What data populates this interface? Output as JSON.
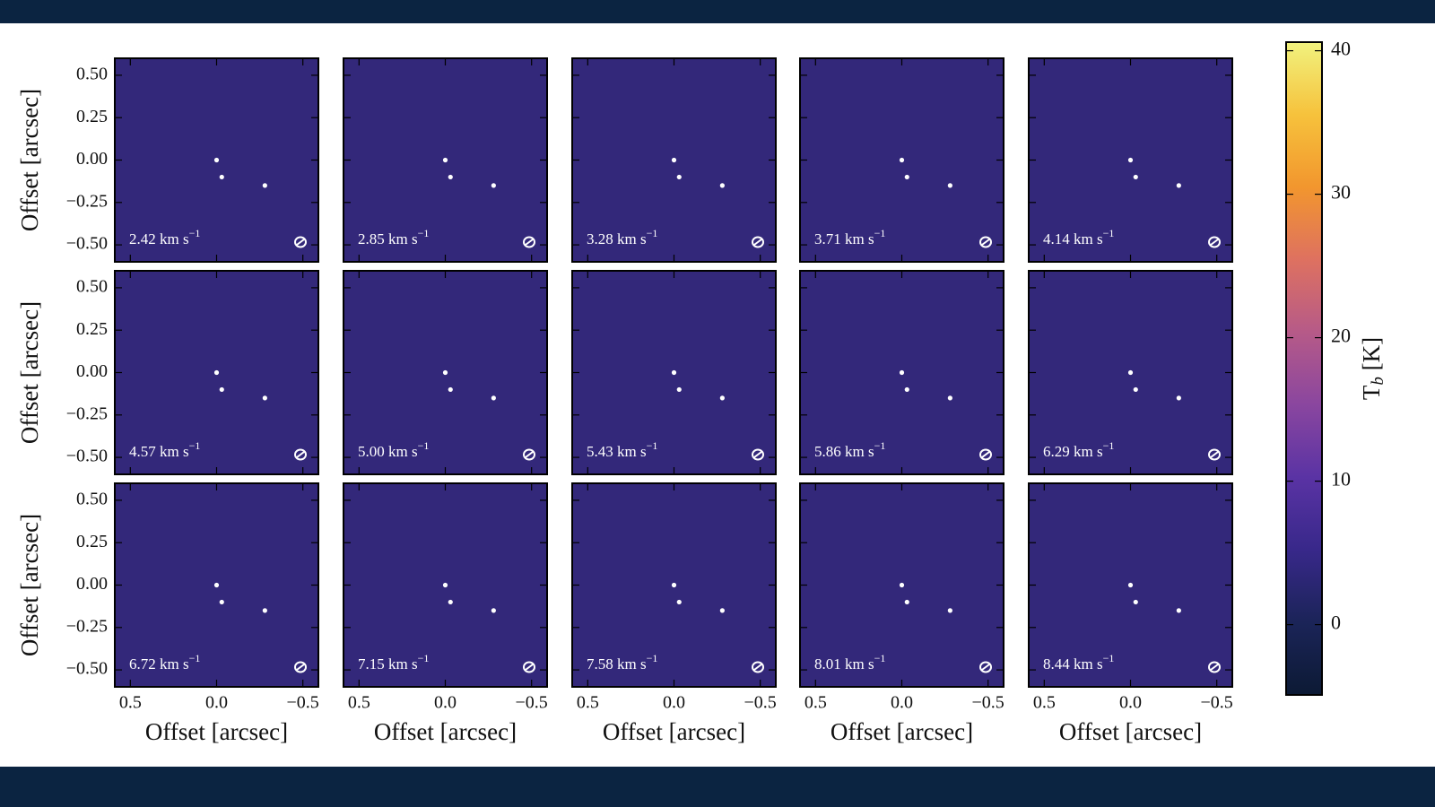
{
  "chart_data": {
    "type": "channel-map",
    "xlabel": "Offset [arcsec]",
    "ylabel": "Offset [arcsec]",
    "xlim": [
      0.59,
      -0.59
    ],
    "ylim": [
      -0.6,
      0.6
    ],
    "xticks": [
      0.5,
      {
        "value": 0,
        "label": "0.0"
      },
      {
        "value": -0.5,
        "label": "−0.5"
      }
    ],
    "yticks": [
      {
        "value": -0.5,
        "label": "−0.50"
      },
      {
        "value": -0.25,
        "label": "−0.25"
      },
      {
        "value": 0,
        "label": "0.00"
      },
      {
        "value": 0.25,
        "label": "0.25"
      },
      {
        "value": 0.5,
        "label": "0.50"
      }
    ],
    "panel_color": "#33287a",
    "source_color": "#ffffff",
    "sources": {
      "x": [
        0,
        -0.03,
        -0.28
      ],
      "y": [
        0,
        -0.1,
        -0.15
      ]
    },
    "columns": 5,
    "panels": [
      {
        "text": "2.42 km s",
        "sup": "−1"
      },
      {
        "text": "2.85 km s",
        "sup": "−1"
      },
      {
        "text": "3.28 km s",
        "sup": "−1"
      },
      {
        "text": "3.71 km s",
        "sup": "−1"
      },
      {
        "text": "4.14 km s",
        "sup": "−1"
      },
      {
        "text": "4.57 km s",
        "sup": "−1"
      },
      {
        "text": "5.00 km s",
        "sup": "−1"
      },
      {
        "text": "5.43 km s",
        "sup": "−1"
      },
      {
        "text": "5.86 km s",
        "sup": "−1"
      },
      {
        "text": "6.29 km s",
        "sup": "−1"
      },
      {
        "text": "6.72 km s",
        "sup": "−1"
      },
      {
        "text": "7.15 km s",
        "sup": "−1"
      },
      {
        "text": "7.58 km s",
        "sup": "−1"
      },
      {
        "text": "8.01 km s",
        "sup": "−1"
      },
      {
        "text": "8.44 km s",
        "sup": "−1"
      }
    ],
    "colorbar": {
      "label": {
        "main": "T",
        "sub": "b",
        "unit": " [K]"
      },
      "lim": [
        -4.9,
        40.6
      ],
      "ticks": [
        0,
        10,
        20,
        30,
        40
      ],
      "colormap": [
        "#0c1a34",
        "#1b2458",
        "#38288a",
        "#5a33a4",
        "#8a469f",
        "#b65a88",
        "#de7160",
        "#f2962e",
        "#f6c23c",
        "#f1f27e"
      ]
    }
  }
}
